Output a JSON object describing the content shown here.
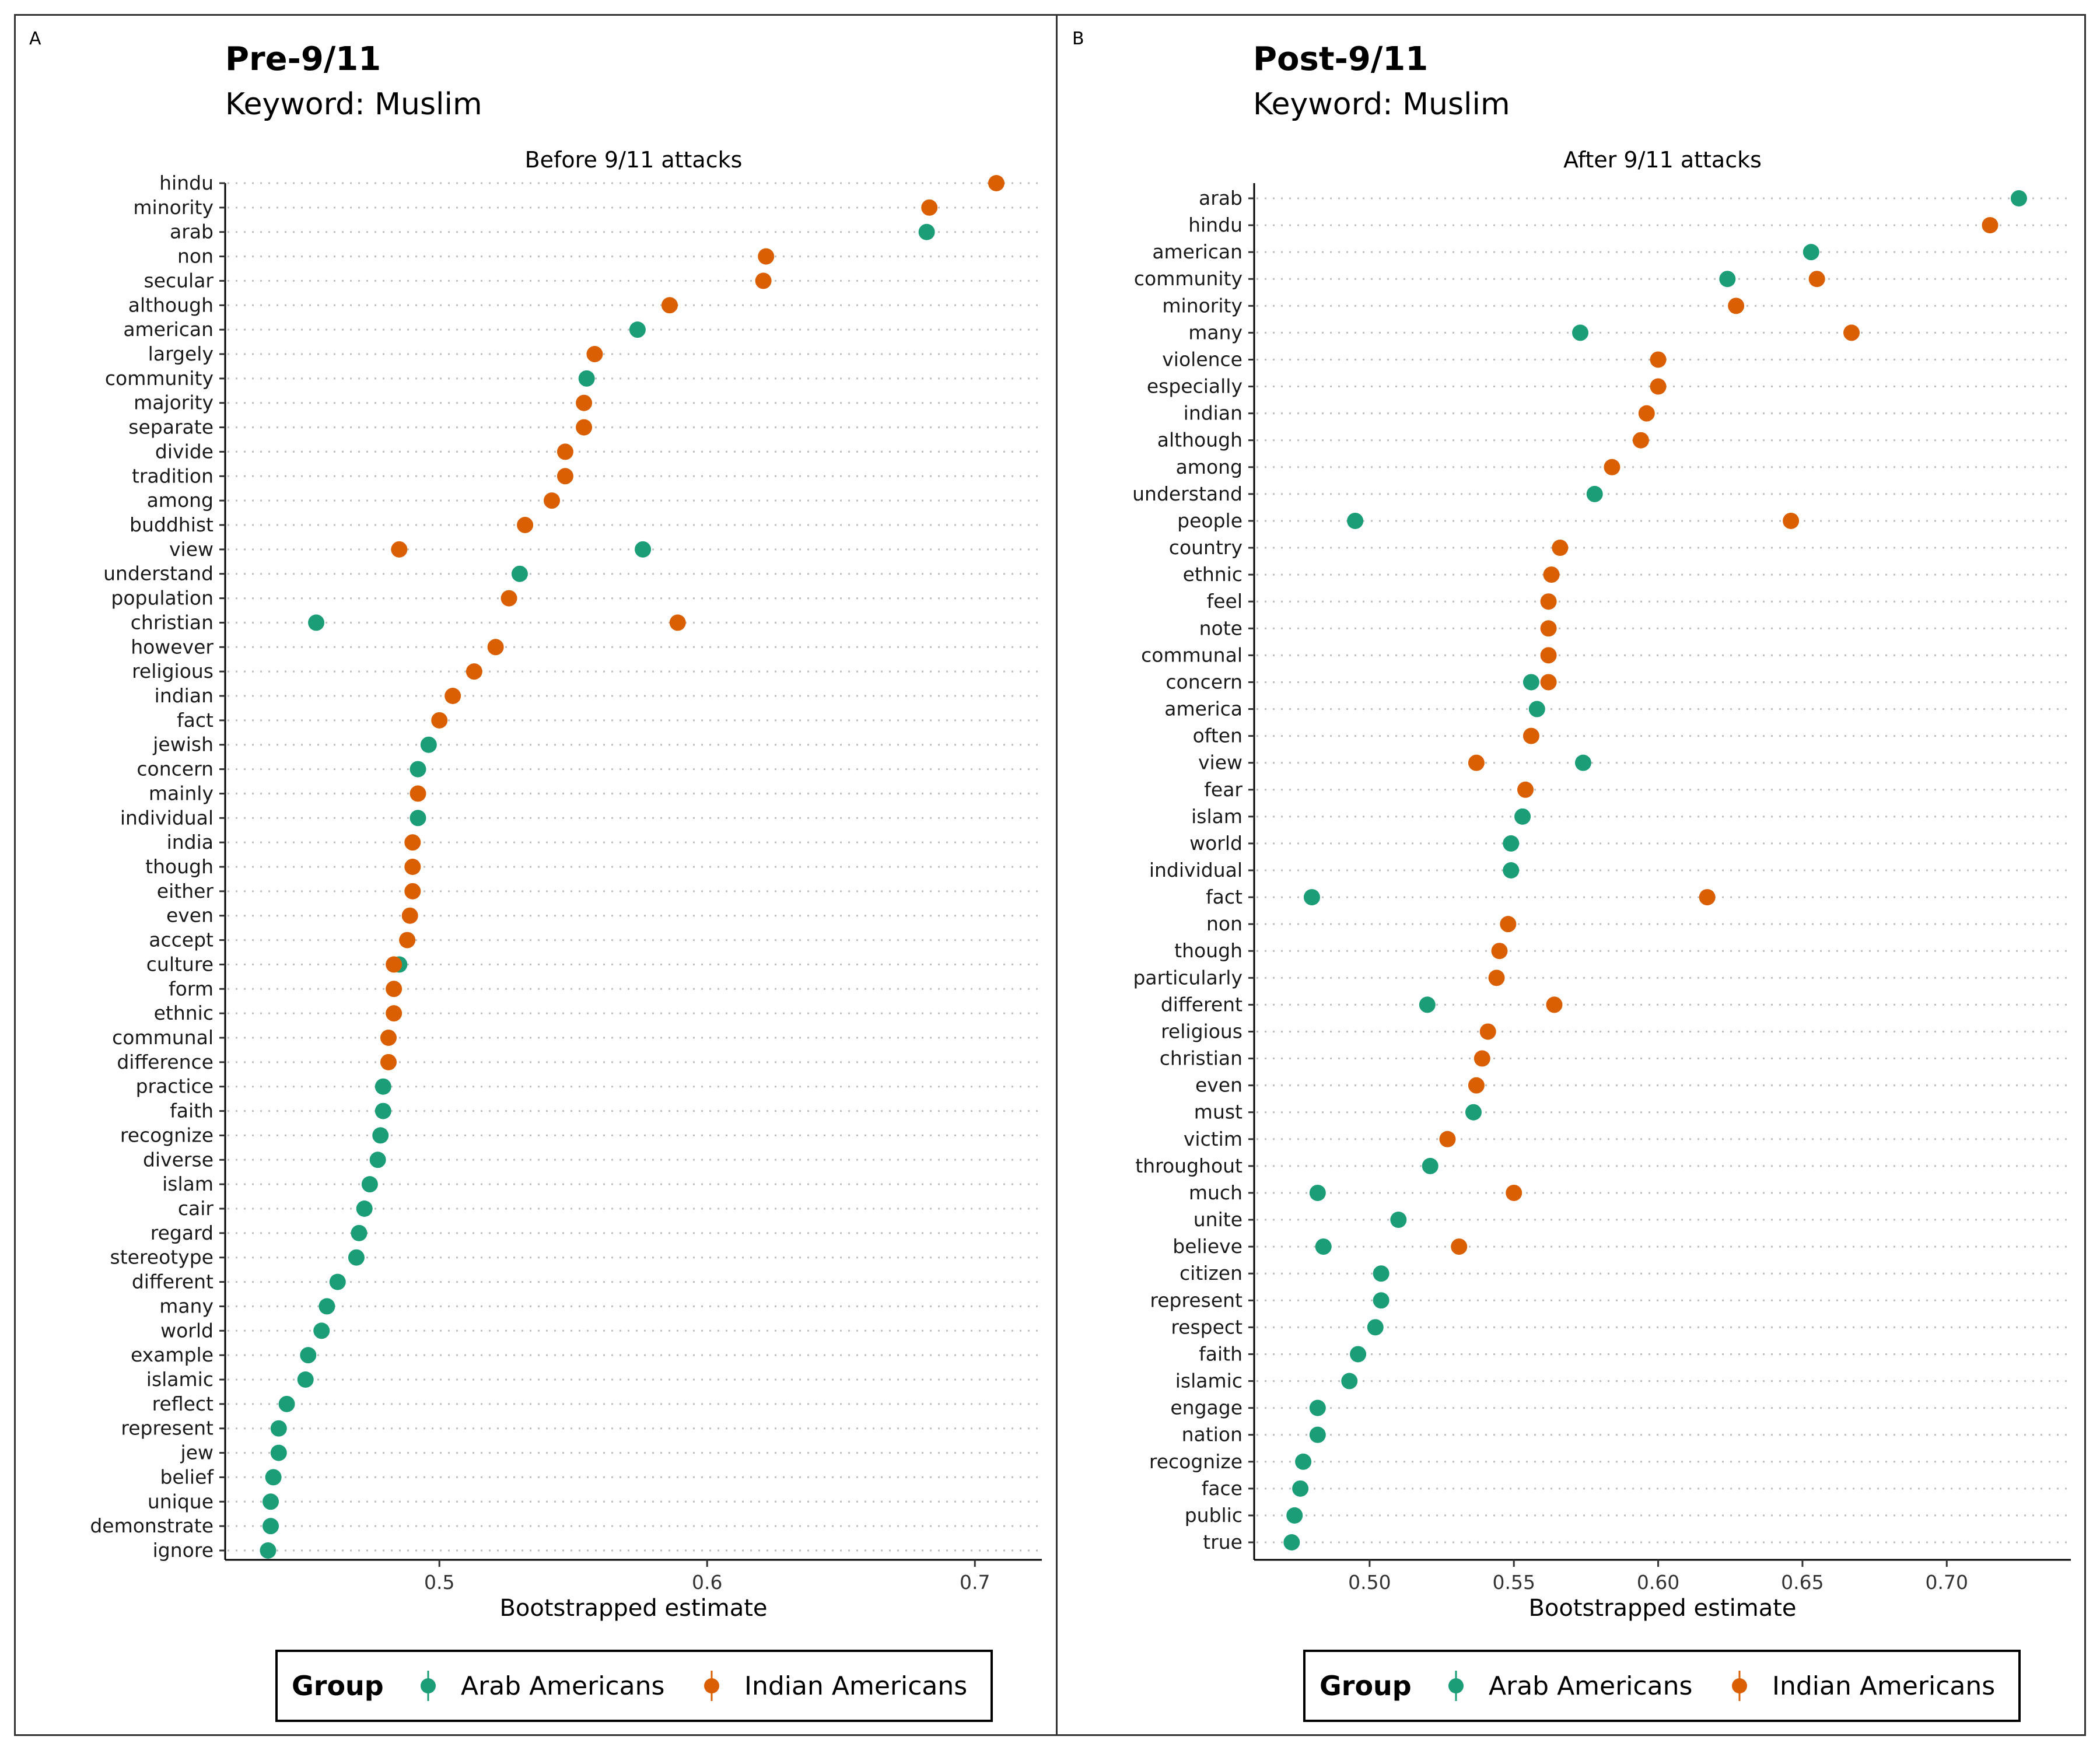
{
  "colors": {
    "arab": "#1B9E77",
    "indian": "#D95F02"
  },
  "panels": [
    {
      "tag": "A",
      "title": "Pre-9/11",
      "subtitle": "Keyword: Muslim",
      "strip": "Before 9/11 attacks",
      "legend_title": "Group",
      "legend_items": [
        "Arab Americans",
        "Indian Americans"
      ]
    },
    {
      "tag": "B",
      "title": "Post-9/11",
      "subtitle": "Keyword: Muslim",
      "strip": "After 9/11 attacks",
      "legend_title": "Group",
      "legend_items": [
        "Arab Americans",
        "Indian Americans"
      ]
    }
  ],
  "chart_data": [
    {
      "type": "scatter",
      "title": "Pre-9/11",
      "subtitle": "Keyword: Muslim",
      "facet": "Before 9/11 attacks",
      "xlabel": "Bootstrapped estimate",
      "ylabel": "",
      "xlim": [
        0.42,
        0.725
      ],
      "xticks": [
        0.5,
        0.6,
        0.7
      ],
      "xtick_labels": [
        "0.5",
        "0.6",
        "0.7"
      ],
      "grid": "horizontal dotted",
      "legend": "bottom",
      "categories": [
        "hindu",
        "minority",
        "arab",
        "non",
        "secular",
        "although",
        "american",
        "largely",
        "community",
        "majority",
        "separate",
        "divide",
        "tradition",
        "among",
        "buddhist",
        "view",
        "understand",
        "population",
        "christian",
        "however",
        "religious",
        "indian",
        "fact",
        "jewish",
        "concern",
        "mainly",
        "individual",
        "india",
        "though",
        "either",
        "even",
        "accept",
        "culture",
        "form",
        "ethnic",
        "communal",
        "difference",
        "practice",
        "faith",
        "recognize",
        "diverse",
        "islam",
        "cair",
        "regard",
        "stereotype",
        "different",
        "many",
        "world",
        "example",
        "islamic",
        "reflect",
        "represent",
        "jew",
        "belief",
        "unique",
        "demonstrate",
        "ignore"
      ],
      "series": [
        {
          "name": "Arab Americans",
          "values": [
            null,
            null,
            0.682,
            null,
            null,
            null,
            0.574,
            null,
            0.555,
            null,
            null,
            null,
            null,
            null,
            null,
            0.576,
            0.53,
            null,
            0.454,
            null,
            null,
            null,
            null,
            0.496,
            0.492,
            null,
            0.492,
            null,
            null,
            null,
            null,
            null,
            0.485,
            null,
            null,
            null,
            null,
            0.479,
            0.479,
            0.478,
            0.477,
            0.474,
            0.472,
            0.47,
            0.469,
            0.462,
            0.458,
            0.456,
            0.451,
            0.45,
            0.443,
            0.44,
            0.44,
            0.438,
            0.437,
            0.437,
            0.436
          ]
        },
        {
          "name": "Indian Americans",
          "values": [
            0.708,
            0.683,
            null,
            0.622,
            0.621,
            0.586,
            null,
            0.558,
            null,
            0.554,
            0.554,
            0.547,
            0.547,
            0.542,
            0.532,
            0.485,
            null,
            0.526,
            0.589,
            0.521,
            0.513,
            0.505,
            0.5,
            null,
            null,
            0.492,
            null,
            0.49,
            0.49,
            0.49,
            0.489,
            0.488,
            0.483,
            0.483,
            0.483,
            0.481,
            0.481,
            null,
            null,
            null,
            null,
            null,
            null,
            null,
            null,
            null,
            null,
            null,
            null,
            null,
            null,
            null,
            null,
            null,
            null,
            null,
            null
          ]
        }
      ]
    },
    {
      "type": "scatter",
      "title": "Post-9/11",
      "subtitle": "Keyword: Muslim",
      "facet": "After 9/11 attacks",
      "xlabel": "Bootstrapped estimate",
      "ylabel": "",
      "xlim": [
        0.46,
        0.743
      ],
      "xticks": [
        0.5,
        0.55,
        0.6,
        0.65,
        0.7
      ],
      "xtick_labels": [
        "0.50",
        "0.55",
        "0.60",
        "0.65",
        "0.70"
      ],
      "grid": "horizontal dotted",
      "legend": "bottom",
      "categories": [
        "arab",
        "hindu",
        "american",
        "community",
        "minority",
        "many",
        "violence",
        "especially",
        "indian",
        "although",
        "among",
        "understand",
        "people",
        "country",
        "ethnic",
        "feel",
        "note",
        "communal",
        "concern",
        "america",
        "often",
        "view",
        "fear",
        "islam",
        "world",
        "individual",
        "fact",
        "non",
        "though",
        "particularly",
        "different",
        "religious",
        "christian",
        "even",
        "must",
        "victim",
        "throughout",
        "much",
        "unite",
        "believe",
        "citizen",
        "represent",
        "respect",
        "faith",
        "islamic",
        "engage",
        "nation",
        "recognize",
        "face",
        "public",
        "true"
      ],
      "series": [
        {
          "name": "Arab Americans",
          "values": [
            0.725,
            null,
            0.653,
            0.624,
            null,
            0.573,
            null,
            null,
            null,
            null,
            null,
            0.578,
            0.495,
            null,
            null,
            null,
            null,
            null,
            0.556,
            0.558,
            null,
            0.574,
            null,
            0.553,
            0.549,
            0.549,
            0.48,
            null,
            null,
            null,
            0.52,
            null,
            null,
            null,
            0.536,
            null,
            0.521,
            0.482,
            0.51,
            0.484,
            0.504,
            0.504,
            0.502,
            0.496,
            0.493,
            0.482,
            0.482,
            0.477,
            0.476,
            0.474,
            0.473
          ]
        },
        {
          "name": "Indian Americans",
          "values": [
            null,
            0.715,
            null,
            0.655,
            0.627,
            0.667,
            0.6,
            0.6,
            0.596,
            0.594,
            0.584,
            null,
            0.646,
            0.566,
            0.563,
            0.562,
            0.562,
            0.562,
            0.562,
            null,
            0.556,
            0.537,
            0.554,
            null,
            null,
            null,
            0.617,
            0.548,
            0.545,
            0.544,
            0.564,
            0.541,
            0.539,
            0.537,
            null,
            0.527,
            null,
            0.55,
            null,
            0.531,
            null,
            null,
            null,
            null,
            null,
            null,
            null,
            null,
            null,
            null,
            null
          ]
        }
      ]
    }
  ]
}
